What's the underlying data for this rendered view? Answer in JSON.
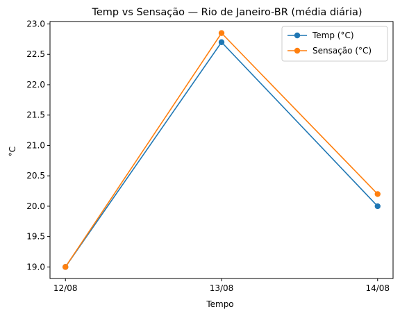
{
  "chart_data": {
    "type": "line",
    "title": "Temp vs Sensação — Rio de Janeiro-BR (média diária)",
    "xlabel": "Tempo",
    "ylabel": "°C",
    "categories": [
      "12/08",
      "13/08",
      "14/08"
    ],
    "series": [
      {
        "name": "Temp (°C)",
        "values": [
          19.0,
          22.7,
          20.0
        ],
        "color": "#1f77b4"
      },
      {
        "name": "Sensação (°C)",
        "values": [
          19.0,
          22.85,
          20.2
        ],
        "color": "#ff7f0e"
      }
    ],
    "ylim": [
      18.81,
      23.04
    ],
    "yticks": [
      "19.0",
      "19.5",
      "20.0",
      "20.5",
      "21.0",
      "21.5",
      "22.0",
      "22.5",
      "23.0"
    ],
    "grid": false,
    "legend_position": "top-right",
    "marker": "circle"
  }
}
